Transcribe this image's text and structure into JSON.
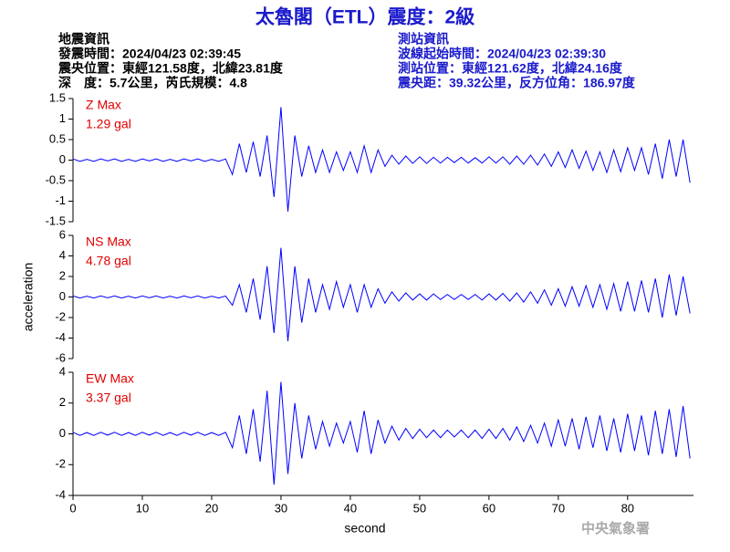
{
  "header": {
    "title": "太魯閣（ETL）震度：2級",
    "left_lines": [
      "地震資訊",
      "發震時間：2024/04/23 02:39:45",
      "震央位置：東經121.58度，北緯23.81度",
      "深　度：5.7公里，芮氏規模：4.8"
    ],
    "right_lines": [
      "測站資訊",
      "波線起始時間：2024/04/23 02:39:30",
      "測站位置：東經121.62度，北緯24.16度",
      "震央距：39.32公里，反方位角：186.97度"
    ],
    "credit": "中央氣象署"
  },
  "chart_data": [
    {
      "type": "line",
      "label": "Z Max",
      "max_label": "1.29 gal",
      "color": "#0000ff",
      "x": [
        0,
        1,
        2,
        3,
        4,
        5,
        6,
        7,
        8,
        9,
        10,
        11,
        12,
        13,
        14,
        15,
        16,
        17,
        18,
        19,
        20,
        21,
        22,
        23,
        24,
        25,
        26,
        27,
        28,
        29,
        30,
        31,
        32,
        33,
        34,
        35,
        36,
        37,
        38,
        39,
        40,
        41,
        42,
        43,
        44,
        45,
        46,
        47,
        48,
        49,
        50,
        51,
        52,
        53,
        54,
        55,
        56,
        57,
        58,
        59,
        60,
        61,
        62,
        63,
        64,
        65,
        66,
        67,
        68,
        69,
        70,
        71,
        72,
        73,
        74,
        75,
        76,
        77,
        78,
        79,
        80,
        81,
        82,
        83,
        84,
        85,
        86,
        87,
        88,
        89
      ],
      "values": [
        0.03,
        -0.03,
        0.02,
        -0.03,
        0.03,
        -0.02,
        0.03,
        -0.03,
        0.02,
        -0.03,
        0.03,
        -0.02,
        0.03,
        -0.03,
        0.02,
        -0.03,
        0.03,
        -0.02,
        0.03,
        -0.03,
        0.02,
        -0.03,
        0.03,
        -0.35,
        0.4,
        -0.3,
        0.45,
        -0.4,
        0.6,
        -0.9,
        1.29,
        -1.25,
        0.6,
        -0.4,
        0.35,
        -0.3,
        0.25,
        -0.3,
        0.2,
        -0.25,
        0.2,
        -0.3,
        0.35,
        -0.3,
        0.25,
        -0.15,
        0.12,
        -0.1,
        0.1,
        -0.08,
        0.08,
        -0.08,
        0.07,
        -0.07,
        0.07,
        -0.06,
        0.07,
        -0.07,
        0.06,
        -0.07,
        0.08,
        -0.07,
        0.08,
        -0.1,
        0.1,
        -0.1,
        0.12,
        -0.12,
        0.15,
        -0.15,
        0.2,
        -0.18,
        0.25,
        -0.2,
        0.22,
        -0.25,
        0.2,
        -0.3,
        0.25,
        -0.28,
        0.3,
        -0.25,
        0.3,
        -0.35,
        0.4,
        -0.45,
        0.5,
        -0.4,
        0.5,
        -0.55
      ],
      "xlim": [
        0,
        89.5
      ],
      "ylim": [
        -1.5,
        1.5
      ],
      "yticks": [
        -1.5,
        -1,
        -0.5,
        0,
        0.5,
        1,
        1.5
      ]
    },
    {
      "type": "line",
      "label": "NS Max",
      "max_label": "4.78 gal",
      "color": "#0000ff",
      "ylabel": "acceleration",
      "x": [
        0,
        1,
        2,
        3,
        4,
        5,
        6,
        7,
        8,
        9,
        10,
        11,
        12,
        13,
        14,
        15,
        16,
        17,
        18,
        19,
        20,
        21,
        22,
        23,
        24,
        25,
        26,
        27,
        28,
        29,
        30,
        31,
        32,
        33,
        34,
        35,
        36,
        37,
        38,
        39,
        40,
        41,
        42,
        43,
        44,
        45,
        46,
        47,
        48,
        49,
        50,
        51,
        52,
        53,
        54,
        55,
        56,
        57,
        58,
        59,
        60,
        61,
        62,
        63,
        64,
        65,
        66,
        67,
        68,
        69,
        70,
        71,
        72,
        73,
        74,
        75,
        76,
        77,
        78,
        79,
        80,
        81,
        82,
        83,
        84,
        85,
        86,
        87,
        88,
        89
      ],
      "values": [
        0.1,
        -0.1,
        0.08,
        -0.1,
        0.1,
        -0.08,
        0.1,
        -0.1,
        0.08,
        -0.1,
        0.1,
        -0.08,
        0.1,
        -0.1,
        0.08,
        -0.1,
        0.1,
        -0.08,
        0.1,
        -0.1,
        0.08,
        -0.1,
        0.1,
        -0.8,
        1.2,
        -1.5,
        1.8,
        -2.2,
        3.0,
        -3.5,
        4.78,
        -4.3,
        3.0,
        -2.5,
        1.8,
        -1.5,
        1.2,
        -1.2,
        1.5,
        -1.0,
        1.2,
        -1.5,
        1.2,
        -1.0,
        0.8,
        -0.6,
        0.5,
        -0.4,
        0.4,
        -0.3,
        0.3,
        -0.3,
        0.3,
        -0.25,
        0.25,
        -0.25,
        0.25,
        -0.25,
        0.25,
        -0.3,
        0.3,
        -0.3,
        0.35,
        -0.4,
        0.4,
        -0.5,
        0.5,
        -0.6,
        0.7,
        -0.8,
        0.8,
        -0.9,
        1.0,
        -0.9,
        1.1,
        -1.0,
        1.2,
        -1.2,
        1.3,
        -1.4,
        1.5,
        -1.4,
        1.6,
        -1.5,
        1.8,
        -2.0,
        2.2,
        -1.8,
        2.0,
        -1.6
      ],
      "xlim": [
        0,
        89.5
      ],
      "ylim": [
        -6,
        6
      ],
      "yticks": [
        -6,
        -4,
        -2,
        0,
        2,
        4,
        6
      ]
    },
    {
      "type": "line",
      "label": "EW Max",
      "max_label": "3.37 gal",
      "color": "#0000ff",
      "xlabel": "second",
      "x": [
        0,
        1,
        2,
        3,
        4,
        5,
        6,
        7,
        8,
        9,
        10,
        11,
        12,
        13,
        14,
        15,
        16,
        17,
        18,
        19,
        20,
        21,
        22,
        23,
        24,
        25,
        26,
        27,
        28,
        29,
        30,
        31,
        32,
        33,
        34,
        35,
        36,
        37,
        38,
        39,
        40,
        41,
        42,
        43,
        44,
        45,
        46,
        47,
        48,
        49,
        50,
        51,
        52,
        53,
        54,
        55,
        56,
        57,
        58,
        59,
        60,
        61,
        62,
        63,
        64,
        65,
        66,
        67,
        68,
        69,
        70,
        71,
        72,
        73,
        74,
        75,
        76,
        77,
        78,
        79,
        80,
        81,
        82,
        83,
        84,
        85,
        86,
        87,
        88,
        89
      ],
      "values": [
        0.1,
        -0.1,
        0.08,
        -0.1,
        0.1,
        -0.08,
        0.1,
        -0.1,
        0.08,
        -0.1,
        0.1,
        -0.08,
        0.1,
        -0.1,
        0.08,
        -0.1,
        0.1,
        -0.08,
        0.1,
        -0.1,
        0.08,
        -0.1,
        0.1,
        -0.9,
        1.2,
        -1.3,
        1.6,
        -1.8,
        2.8,
        -3.3,
        3.37,
        -2.6,
        2.0,
        -1.6,
        1.2,
        -1.0,
        0.8,
        -0.8,
        0.7,
        -0.6,
        0.8,
        -1.2,
        1.5,
        -1.3,
        0.9,
        -0.6,
        0.5,
        -0.4,
        0.35,
        -0.3,
        0.3,
        -0.25,
        0.25,
        -0.25,
        0.25,
        -0.2,
        0.25,
        -0.25,
        0.25,
        -0.3,
        0.3,
        -0.3,
        0.35,
        -0.4,
        0.45,
        -0.5,
        0.55,
        -0.6,
        0.7,
        -0.8,
        0.9,
        -0.8,
        1.0,
        -1.0,
        1.1,
        -0.9,
        1.2,
        -1.1,
        1.0,
        -1.2,
        1.3,
        -1.1,
        1.2,
        -1.4,
        1.5,
        -1.3,
        1.6,
        -1.5,
        1.8,
        -1.6
      ],
      "xlim": [
        0,
        89.5
      ],
      "ylim": [
        -4,
        4
      ],
      "yticks": [
        -4,
        -2,
        0,
        2,
        4
      ],
      "xticks": [
        0,
        10,
        20,
        30,
        40,
        50,
        60,
        70,
        80
      ]
    }
  ]
}
